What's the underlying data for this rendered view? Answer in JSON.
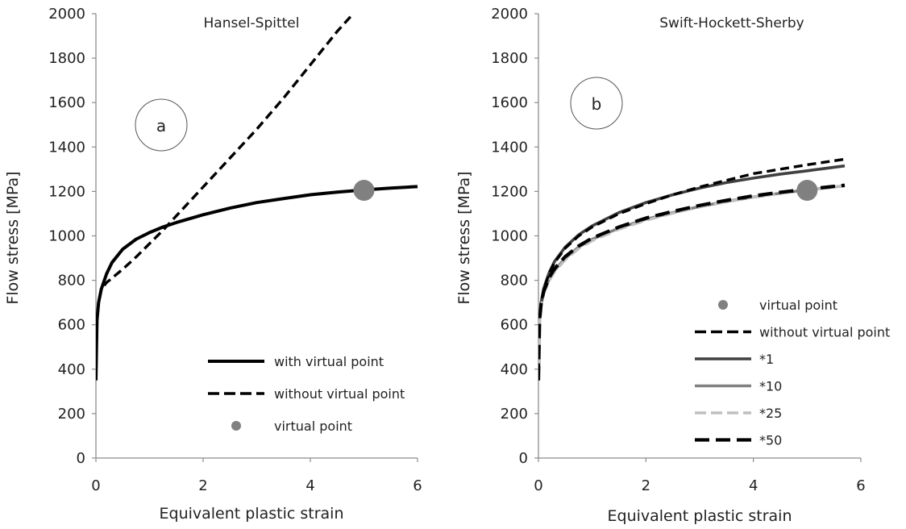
{
  "chart_data": [
    {
      "type": "line",
      "title": "Hansel-Spittel",
      "panel_label": "a",
      "xlabel": "Equivalent plastic strain",
      "ylabel": "Flow stress [MPa]",
      "xlim": [
        0,
        6
      ],
      "ylim": [
        0,
        2000
      ],
      "xticks": [
        "0",
        "2",
        "4",
        "6"
      ],
      "yticks": [
        "0",
        "200",
        "400",
        "600",
        "800",
        "1000",
        "1200",
        "1400",
        "1600",
        "1800",
        "2000"
      ],
      "grid": false,
      "legend_position": "bottom-right",
      "series": [
        {
          "name": "with virtual point",
          "style": "solid",
          "color": "#000000",
          "x": [
            0,
            0.02,
            0.05,
            0.1,
            0.2,
            0.3,
            0.5,
            0.75,
            1.0,
            1.25,
            1.5,
            2.0,
            2.5,
            3.0,
            3.5,
            4.0,
            4.5,
            5.0,
            5.5,
            6.0
          ],
          "y": [
            350,
            620,
            700,
            760,
            830,
            880,
            940,
            985,
            1015,
            1040,
            1060,
            1095,
            1125,
            1150,
            1168,
            1185,
            1197,
            1207,
            1215,
            1222
          ]
        },
        {
          "name": "without virtual point",
          "style": "dashed",
          "color": "#000000",
          "x": [
            0,
            0.02,
            0.05,
            0.1,
            0.2,
            0.3,
            0.5,
            0.75,
            1.0,
            1.25,
            1.5,
            2.0,
            2.5,
            3.0,
            3.5,
            4.0,
            4.5,
            4.8
          ],
          "y": [
            350,
            620,
            700,
            760,
            790,
            810,
            850,
            905,
            965,
            1025,
            1090,
            1220,
            1350,
            1480,
            1620,
            1770,
            1920,
            2000
          ]
        },
        {
          "name": "virtual point",
          "style": "marker",
          "color": "#808080",
          "x": [
            5.0
          ],
          "y": [
            1205
          ]
        }
      ]
    },
    {
      "type": "line",
      "title": "Swift-Hockett-Sherby",
      "panel_label": "b",
      "xlabel": "Equivalent plastic strain",
      "ylabel": "Flow stress [MPa]",
      "xlim": [
        0,
        6
      ],
      "ylim": [
        0,
        2000
      ],
      "xticks": [
        "0",
        "2",
        "4",
        "6"
      ],
      "yticks": [
        "0",
        "200",
        "400",
        "600",
        "800",
        "1000",
        "1200",
        "1400",
        "1600",
        "1800",
        "2000"
      ],
      "grid": false,
      "legend_position": "bottom-right",
      "series": [
        {
          "name": "virtual point",
          "style": "marker",
          "color": "#808080",
          "x": [
            5.0
          ],
          "y": [
            1205
          ]
        },
        {
          "name": "without virtual point",
          "style": "dashed",
          "color": "#000000",
          "x": [
            0,
            0.02,
            0.05,
            0.1,
            0.2,
            0.3,
            0.5,
            0.75,
            1.0,
            1.5,
            2.0,
            2.5,
            3.0,
            3.5,
            4.0,
            4.5,
            5.0,
            5.7
          ],
          "y": [
            350,
            620,
            700,
            760,
            830,
            880,
            945,
            1000,
            1040,
            1100,
            1145,
            1185,
            1220,
            1250,
            1280,
            1300,
            1320,
            1345
          ]
        },
        {
          "name": "*1",
          "style": "solid",
          "color": "#404040",
          "x": [
            0,
            0.02,
            0.05,
            0.1,
            0.2,
            0.3,
            0.5,
            0.75,
            1.0,
            1.5,
            2.0,
            2.5,
            3.0,
            3.5,
            4.0,
            4.5,
            5.0,
            5.7
          ],
          "y": [
            350,
            620,
            700,
            765,
            835,
            885,
            950,
            1005,
            1045,
            1105,
            1150,
            1185,
            1215,
            1240,
            1260,
            1278,
            1293,
            1315
          ]
        },
        {
          "name": "*10",
          "style": "solid",
          "color": "#808080",
          "x": [
            0,
            0.02,
            0.05,
            0.1,
            0.2,
            0.3,
            0.5,
            0.75,
            1.0,
            1.5,
            2.0,
            2.5,
            3.0,
            3.5,
            4.0,
            4.5,
            5.0,
            5.7
          ],
          "y": [
            350,
            610,
            690,
            745,
            805,
            845,
            900,
            950,
            985,
            1035,
            1075,
            1105,
            1132,
            1155,
            1175,
            1192,
            1207,
            1225
          ]
        },
        {
          "name": "*25",
          "style": "dashed",
          "color": "#bfbfbf",
          "x": [
            0,
            0.02,
            0.05,
            0.1,
            0.2,
            0.3,
            0.5,
            0.75,
            1.0,
            1.5,
            2.0,
            2.5,
            3.0,
            3.5,
            4.0,
            4.5,
            5.0,
            5.7
          ],
          "y": [
            350,
            605,
            685,
            740,
            798,
            838,
            893,
            943,
            978,
            1030,
            1070,
            1102,
            1130,
            1153,
            1174,
            1191,
            1206,
            1225
          ]
        },
        {
          "name": "*50",
          "style": "dashed",
          "color": "#000000",
          "x": [
            0,
            0.02,
            0.05,
            0.1,
            0.2,
            0.3,
            0.5,
            0.75,
            1.0,
            1.5,
            2.0,
            2.5,
            3.0,
            3.5,
            4.0,
            4.5,
            5.0,
            5.7
          ],
          "y": [
            350,
            615,
            695,
            752,
            812,
            852,
            907,
            955,
            990,
            1040,
            1080,
            1110,
            1137,
            1160,
            1180,
            1196,
            1210,
            1228
          ]
        }
      ]
    }
  ]
}
